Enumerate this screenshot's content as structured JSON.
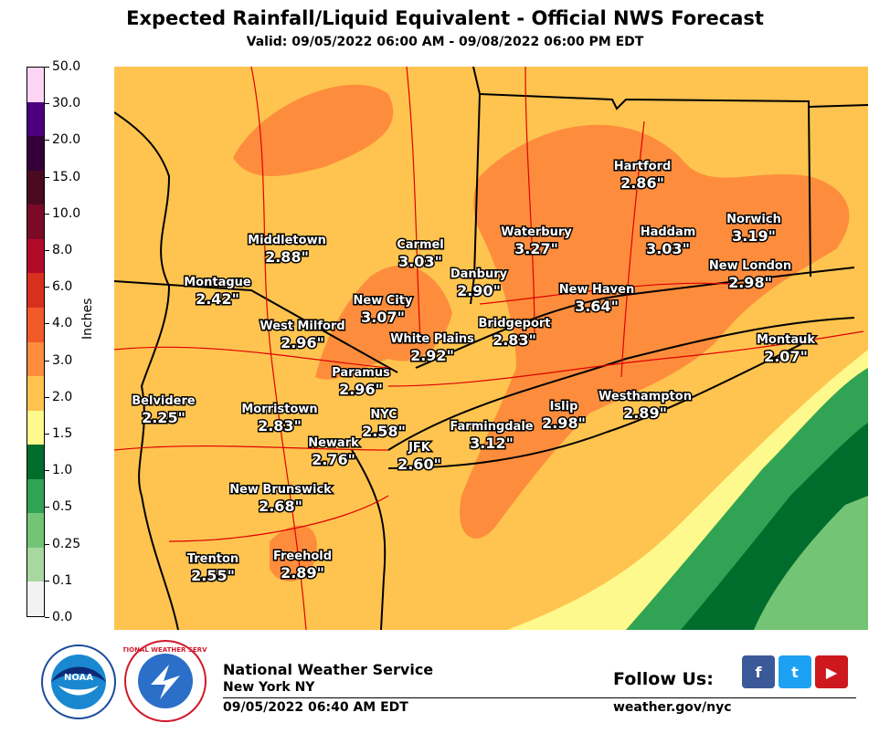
{
  "header": {
    "title": "Expected Rainfall/Liquid Equivalent - Official NWS Forecast",
    "subtitle": "Valid: 09/05/2022 06:00 AM - 09/08/2022 06:00 PM EDT"
  },
  "colorbar": {
    "unit": "Inches",
    "ticks": [
      "0.0",
      "0.1",
      "0.25",
      "0.5",
      "1.0",
      "1.5",
      "2.0",
      "3.0",
      "4.0",
      "6.0",
      "8.0",
      "10.0",
      "15.0",
      "20.0",
      "30.0",
      "50.0"
    ],
    "colors": [
      "#f2f2f2",
      "#a8d8a0",
      "#74c476",
      "#31a354",
      "#006d2c",
      "#fdf98c",
      "#fec44f",
      "#fd8d3c",
      "#f25a2a",
      "#d7301f",
      "#b30a2a",
      "#7a0a26",
      "#4a0a22",
      "#35003a",
      "#4d007d",
      "#fcd5f5"
    ]
  },
  "map": {
    "fill_colors": {
      "light_green": "#74c476",
      "green": "#31a354",
      "dark_green": "#006d2c",
      "yellow": "#fdf98c",
      "light_orange": "#fec44f",
      "orange": "#fd8d3c",
      "border": "#000000",
      "roads": "#e00000"
    },
    "stations": [
      {
        "name": "Hartford",
        "value": "2.86\""
      },
      {
        "name": "Norwich",
        "value": "3.19\""
      },
      {
        "name": "Waterbury",
        "value": "3.27\""
      },
      {
        "name": "Haddam",
        "value": "3.03\""
      },
      {
        "name": "Middletown",
        "value": "2.88\""
      },
      {
        "name": "Carmel",
        "value": "3.03\""
      },
      {
        "name": "Danbury",
        "value": "2.90\""
      },
      {
        "name": "New London",
        "value": "2.98\""
      },
      {
        "name": "Montague",
        "value": "2.42\""
      },
      {
        "name": "New City",
        "value": "3.07\""
      },
      {
        "name": "New Haven",
        "value": "3.64\""
      },
      {
        "name": "West Milford",
        "value": "2.96\""
      },
      {
        "name": "White Plains",
        "value": "2.92\""
      },
      {
        "name": "Bridgeport",
        "value": "2.83\""
      },
      {
        "name": "Montauk",
        "value": "2.07\""
      },
      {
        "name": "Paramus",
        "value": "2.96\""
      },
      {
        "name": "Belvidere",
        "value": "2.25\""
      },
      {
        "name": "Morristown",
        "value": "2.83\""
      },
      {
        "name": "NYC",
        "value": "2.58\""
      },
      {
        "name": "Islip",
        "value": "2.98\""
      },
      {
        "name": "Westhampton",
        "value": "2.89\""
      },
      {
        "name": "Farmingdale",
        "value": "3.12\""
      },
      {
        "name": "Newark",
        "value": "2.76\""
      },
      {
        "name": "JFK",
        "value": "2.60\""
      },
      {
        "name": "New Brunswick",
        "value": "2.68\""
      },
      {
        "name": "Trenton",
        "value": "2.55\""
      },
      {
        "name": "Freehold",
        "value": "2.89\""
      }
    ]
  },
  "footer": {
    "agency": "National Weather Service",
    "office": "New York NY",
    "issued": "09/05/2022 06:40 AM EDT",
    "follow": "Follow Us:",
    "website": "weather.gov/nyc",
    "noaa_logo_text": "NOAA",
    "nws_logo_text": "NATIONAL WEATHER SERVICE",
    "social": [
      {
        "name": "facebook",
        "glyph": "f",
        "color": "#3b5998"
      },
      {
        "name": "twitter",
        "glyph": "t",
        "color": "#1da1f2"
      },
      {
        "name": "youtube",
        "glyph": "▶",
        "color": "#cc181e"
      }
    ]
  }
}
